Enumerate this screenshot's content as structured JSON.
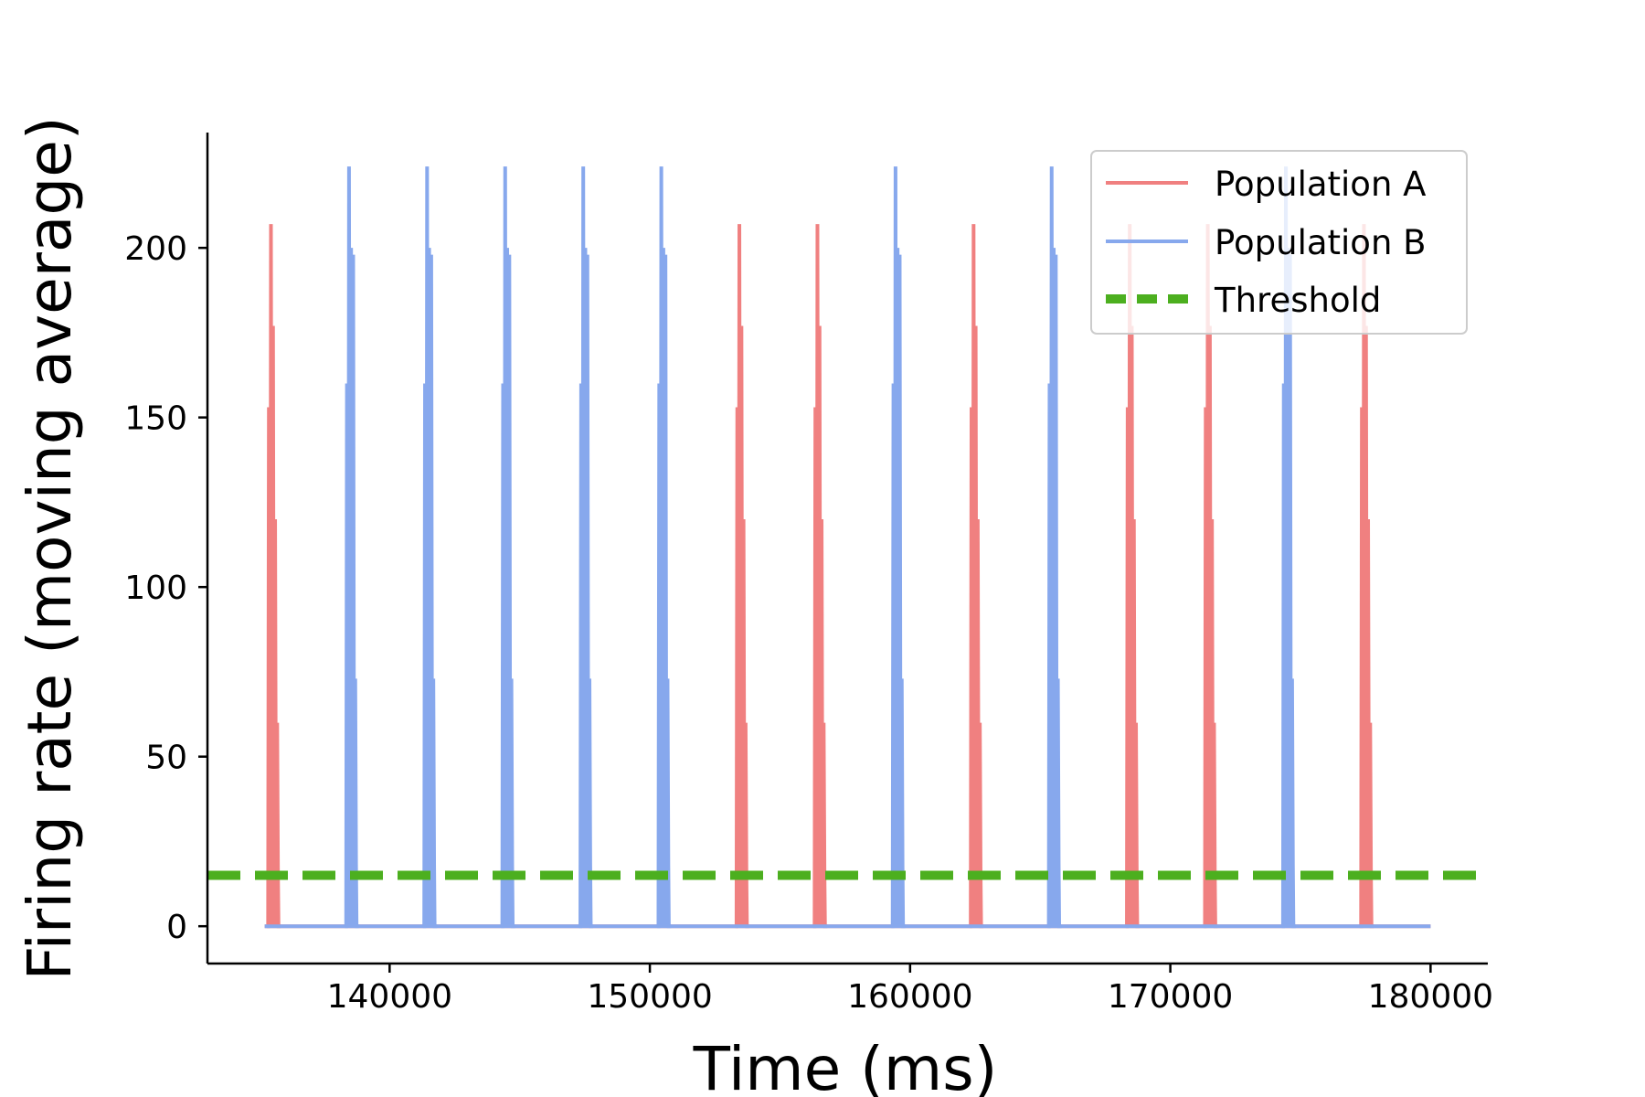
{
  "chart_data": {
    "type": "line",
    "title": "",
    "xlabel": "Time (ms)",
    "ylabel": "Firing rate (moving average)",
    "xlim": [
      133000,
      182200
    ],
    "ylim": [
      -11,
      234
    ],
    "xticks": [
      140000,
      150000,
      160000,
      170000,
      180000
    ],
    "xtick_labels": [
      "140000",
      "150000",
      "160000",
      "170000",
      "180000"
    ],
    "yticks": [
      0,
      50,
      100,
      150,
      200
    ],
    "ytick_labels": [
      "0",
      "50",
      "100",
      "150",
      "200"
    ],
    "grid": false,
    "legend_position": "top-right",
    "x_range": [
      135200,
      180000
    ],
    "threshold": 15,
    "series": [
      {
        "name": "Population A",
        "color": "#f08080",
        "style": "solid",
        "burst_times": [
          135400,
          153400,
          156400,
          162400,
          168400,
          171400,
          177400
        ],
        "burst_peaks": [
          153,
          207,
          177,
          120,
          60
        ]
      },
      {
        "name": "Population B",
        "color": "#87a8ed",
        "style": "solid",
        "burst_times": [
          138400,
          141400,
          144400,
          147400,
          150400,
          159400,
          165400,
          174400
        ],
        "burst_peaks": [
          160,
          224,
          200,
          198,
          73
        ]
      },
      {
        "name": "Threshold",
        "color": "#4caf1f",
        "style": "dashed",
        "value": 15
      }
    ]
  }
}
